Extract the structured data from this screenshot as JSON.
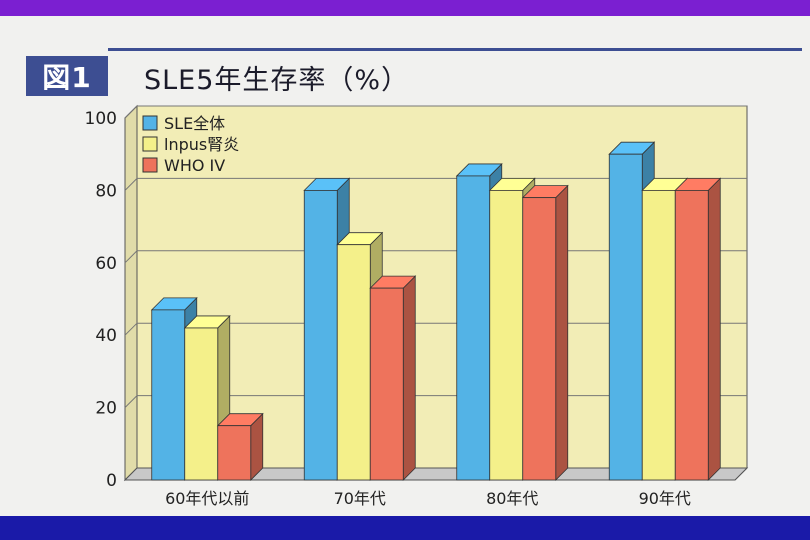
{
  "figure_label": "図1",
  "title": "SLE5年生存率（%）",
  "colors": {
    "frame_top": "#7b1fd1",
    "frame_bottom": "#1a1aa8",
    "badge": "#3d4e92",
    "plot_bg": "#f2edb6",
    "floor": "#c8c8c8"
  },
  "chart_data": {
    "type": "bar",
    "title": "SLE5年生存率（%）",
    "xlabel": "",
    "ylabel": "",
    "ylim": [
      0,
      100
    ],
    "yticks": [
      0,
      20,
      40,
      60,
      80,
      100
    ],
    "grid": true,
    "legend_position": "top-left",
    "categories": [
      "60年代以前",
      "70年代",
      "80年代",
      "90年代"
    ],
    "series": [
      {
        "name": "SLE全体",
        "color": "#53b3e6",
        "values": [
          47,
          80,
          84,
          90
        ]
      },
      {
        "name": "lnpus腎炎",
        "color": "#f4f08a",
        "values": [
          42,
          65,
          80,
          80
        ]
      },
      {
        "name": "WHO IV",
        "color": "#ee735c",
        "values": [
          15,
          53,
          78,
          80
        ]
      }
    ]
  }
}
